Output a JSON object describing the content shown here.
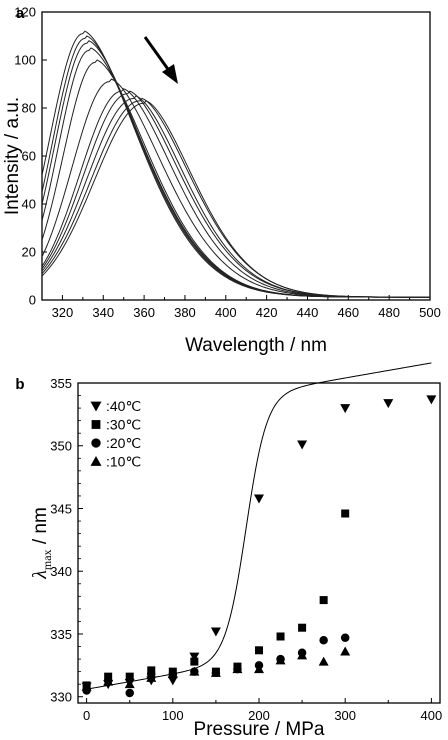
{
  "chart_data": [
    {
      "panel_label": "a",
      "type": "line",
      "xlabel": "Wavelength / nm",
      "ylabel": "Intensity / a.u.",
      "xlim": [
        310,
        500
      ],
      "ylim": [
        0,
        120
      ],
      "xticks": [
        320,
        340,
        360,
        380,
        400,
        420,
        440,
        460,
        480,
        500
      ],
      "yticks": [
        0,
        20,
        40,
        60,
        80,
        100,
        120
      ],
      "annotation": "arrow pointing down-right (peak shift with increasing pressure)",
      "series": [
        {
          "peak_x": 330,
          "peak_y": 111,
          "start_y": 52,
          "width_l": 15,
          "width_r": 40
        },
        {
          "peak_x": 331,
          "peak_y": 109,
          "start_y": 45,
          "width_l": 16,
          "width_r": 40
        },
        {
          "peak_x": 332,
          "peak_y": 107,
          "start_y": 40,
          "width_l": 16,
          "width_r": 40
        },
        {
          "peak_x": 333,
          "peak_y": 104,
          "start_y": 33,
          "width_l": 17,
          "width_r": 40
        },
        {
          "peak_x": 336,
          "peak_y": 99,
          "start_y": 25,
          "width_l": 18,
          "width_r": 39
        },
        {
          "peak_x": 343,
          "peak_y": 91,
          "start_y": 18,
          "width_l": 20,
          "width_r": 39
        },
        {
          "peak_x": 349,
          "peak_y": 87,
          "start_y": 14,
          "width_l": 21,
          "width_r": 38
        },
        {
          "peak_x": 352,
          "peak_y": 86,
          "start_y": 13,
          "width_l": 22,
          "width_r": 38
        },
        {
          "peak_x": 355,
          "peak_y": 84,
          "start_y": 12,
          "width_l": 23,
          "width_r": 37
        },
        {
          "peak_x": 358,
          "peak_y": 83,
          "start_y": 11,
          "width_l": 23,
          "width_r": 37
        },
        {
          "peak_x": 360,
          "peak_y": 82,
          "start_y": 10,
          "width_l": 24,
          "width_r": 36
        }
      ]
    },
    {
      "panel_label": "b",
      "type": "scatter",
      "xlabel": "Pressure / MPa",
      "ylabel_main": "λ",
      "ylabel_sub": "max",
      "ylabel_unit": " / nm",
      "xlim": [
        -10,
        410
      ],
      "ylim": [
        329.5,
        355
      ],
      "xticks": [
        0,
        100,
        200,
        300,
        400
      ],
      "yticks": [
        330,
        335,
        340,
        345,
        350,
        355
      ],
      "legend_position": "top-left",
      "series": [
        {
          "name": ":40℃",
          "marker": "triangle-down",
          "x": [
            0,
            25,
            50,
            75,
            100,
            125,
            150,
            200,
            250,
            300,
            350,
            400
          ],
          "y": [
            330.8,
            331.0,
            331.1,
            331.3,
            331.3,
            333.2,
            335.2,
            345.8,
            350.1,
            353.0,
            353.4,
            353.7
          ]
        },
        {
          "name": ":30℃",
          "marker": "square",
          "x": [
            0,
            25,
            50,
            75,
            100,
            125,
            150,
            175,
            200,
            225,
            250,
            275,
            300
          ],
          "y": [
            330.9,
            331.6,
            331.6,
            332.1,
            332.0,
            332.8,
            332.0,
            332.4,
            333.7,
            334.8,
            335.5,
            337.7,
            344.6
          ]
        },
        {
          "name": ":20℃",
          "marker": "circle",
          "x": [
            0,
            25,
            50,
            75,
            100,
            125,
            150,
            175,
            200,
            225,
            250,
            275,
            300
          ],
          "y": [
            330.5,
            331.3,
            330.3,
            331.8,
            331.8,
            332.0,
            331.9,
            332.2,
            332.5,
            333.0,
            333.5,
            334.5,
            334.7
          ]
        },
        {
          "name": ":10℃",
          "marker": "triangle-up",
          "x": [
            0,
            25,
            50,
            75,
            100,
            125,
            150,
            175,
            200,
            225,
            250,
            275,
            300
          ],
          "y": [
            330.8,
            331.2,
            331.0,
            331.5,
            331.8,
            332.0,
            331.9,
            332.2,
            332.2,
            332.9,
            333.3,
            332.8,
            333.6
          ]
        }
      ],
      "fit_curve": {
        "series": ":40℃",
        "base": 330.6,
        "slope": 0.012,
        "amplitude": 21.2,
        "midpoint": 185,
        "width": 12
      }
    }
  ]
}
